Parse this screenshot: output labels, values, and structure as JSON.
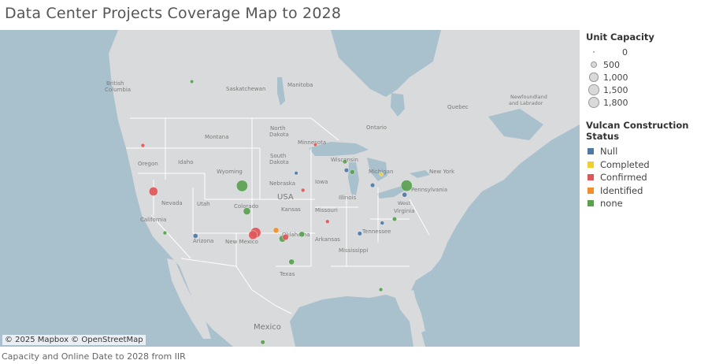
{
  "title": "Data Center Projects Coverage Map to 2028",
  "footer": "Capacity and Online Date to 2028 from IIR",
  "attribution": "© 2025 Mapbox © OpenStreetMap",
  "colors": {
    "water": "#a9c0cd",
    "land": "#d9dadb",
    "Null": "#4e79a7",
    "Completed": "#f1ce2e",
    "Confirmed": "#e15759",
    "Identified": "#f28e2b",
    "none": "#59a14f"
  },
  "legend": {
    "capacity_title": "Unit Capacity",
    "capacity_items": [
      {
        "label": "0",
        "value": 0
      },
      {
        "label": "500",
        "value": 500
      },
      {
        "label": "1,000",
        "value": 1000
      },
      {
        "label": "1,500",
        "value": 1500
      },
      {
        "label": "1,800",
        "value": 1800
      }
    ],
    "status_title": "Vulcan Construction Status",
    "status_items": [
      {
        "label": "Null",
        "key": "Null"
      },
      {
        "label": "Completed",
        "key": "Completed"
      },
      {
        "label": "Confirmed",
        "key": "Confirmed"
      },
      {
        "label": "Identified",
        "key": "Identified"
      },
      {
        "label": "none",
        "key": "none"
      }
    ]
  },
  "map_labels": {
    "countries": [
      "USA",
      "Mexico"
    ],
    "regions": [
      "British Columbia",
      "Saskatchewan",
      "Manitoba",
      "Ontario",
      "Quebec",
      "Newfoundland and Labrador",
      "Montana",
      "North Dakota",
      "South Dakota",
      "Minnesota",
      "Wisconsin",
      "Michigan",
      "Oregon",
      "Idaho",
      "Wyoming",
      "Nevada",
      "Utah",
      "Colorado",
      "Nebraska",
      "Iowa",
      "Illinois",
      "Kansas",
      "Missouri",
      "California",
      "Arizona",
      "New Mexico",
      "Oklahoma",
      "Arkansas",
      "Tennessee",
      "Mississippi",
      "Virginia",
      "West Virginia",
      "Pennsylvania",
      "New York",
      "Texas"
    ]
  },
  "chart_data": {
    "type": "scatter",
    "title": "Data Center Projects Coverage Map to 2028",
    "size_field": "Unit Capacity",
    "color_field": "Vulcan Construction Status",
    "points": [
      {
        "lon": -104.9,
        "lat": 39.7,
        "status": "none",
        "capacity": 1800
      },
      {
        "lon": -77.3,
        "lat": 40.2,
        "status": "none",
        "capacity": 1800
      },
      {
        "lon": -119.8,
        "lat": 39.5,
        "status": "Confirmed",
        "capacity": 1000
      },
      {
        "lon": -101.9,
        "lat": 33.6,
        "status": "Confirmed",
        "capacity": 1500
      },
      {
        "lon": -102.3,
        "lat": 33.3,
        "status": "Confirmed",
        "capacity": 1000
      },
      {
        "lon": -103.7,
        "lat": 36.4,
        "status": "none",
        "capacity": 600
      },
      {
        "lon": -98.5,
        "lat": 33.9,
        "status": "Identified",
        "capacity": 300
      },
      {
        "lon": -97.3,
        "lat": 32.8,
        "status": "none",
        "capacity": 500
      },
      {
        "lon": -96.8,
        "lat": 33.0,
        "status": "Confirmed",
        "capacity": 400
      },
      {
        "lon": -95.4,
        "lat": 29.8,
        "status": "none",
        "capacity": 300
      },
      {
        "lon": -94.1,
        "lat": 33.4,
        "status": "none",
        "capacity": 300
      },
      {
        "lon": -86.6,
        "lat": 41.6,
        "status": "none",
        "capacity": 200
      },
      {
        "lon": -77.5,
        "lat": 39.0,
        "status": "Null",
        "capacity": 200
      },
      {
        "lon": -78.8,
        "lat": 35.8,
        "status": "none",
        "capacity": 150
      },
      {
        "lon": -84.4,
        "lat": 33.7,
        "status": "Null",
        "capacity": 150
      },
      {
        "lon": -90.0,
        "lat": 35.1,
        "status": "Confirmed",
        "capacity": 100
      },
      {
        "lon": -112.0,
        "lat": 33.4,
        "status": "Null",
        "capacity": 200
      },
      {
        "lon": -117.2,
        "lat": 34.0,
        "status": "none",
        "capacity": 100
      },
      {
        "lon": -122.3,
        "lat": 45.6,
        "status": "Confirmed",
        "capacity": 100
      },
      {
        "lon": -93.2,
        "lat": 45.0,
        "status": "Confirmed",
        "capacity": 80
      },
      {
        "lon": -88.0,
        "lat": 42.9,
        "status": "none",
        "capacity": 150
      },
      {
        "lon": -83.0,
        "lat": 40.0,
        "status": "Null",
        "capacity": 150
      },
      {
        "lon": -80.0,
        "lat": 26.6,
        "status": "none",
        "capacity": 100
      },
      {
        "lon": -99.0,
        "lat": 19.4,
        "status": "none",
        "capacity": 150
      },
      {
        "lon": -115.0,
        "lat": 53.5,
        "status": "none",
        "capacity": 80
      },
      {
        "lon": -87.6,
        "lat": 41.8,
        "status": "Null",
        "capacity": 150
      },
      {
        "lon": -94.6,
        "lat": 39.1,
        "status": "Confirmed",
        "capacity": 100
      },
      {
        "lon": -96.0,
        "lat": 41.3,
        "status": "Null",
        "capacity": 80
      },
      {
        "lon": -81.7,
        "lat": 41.5,
        "status": "Completed",
        "capacity": 80
      },
      {
        "lon": -80.8,
        "lat": 35.2,
        "status": "Null",
        "capacity": 100
      }
    ]
  }
}
